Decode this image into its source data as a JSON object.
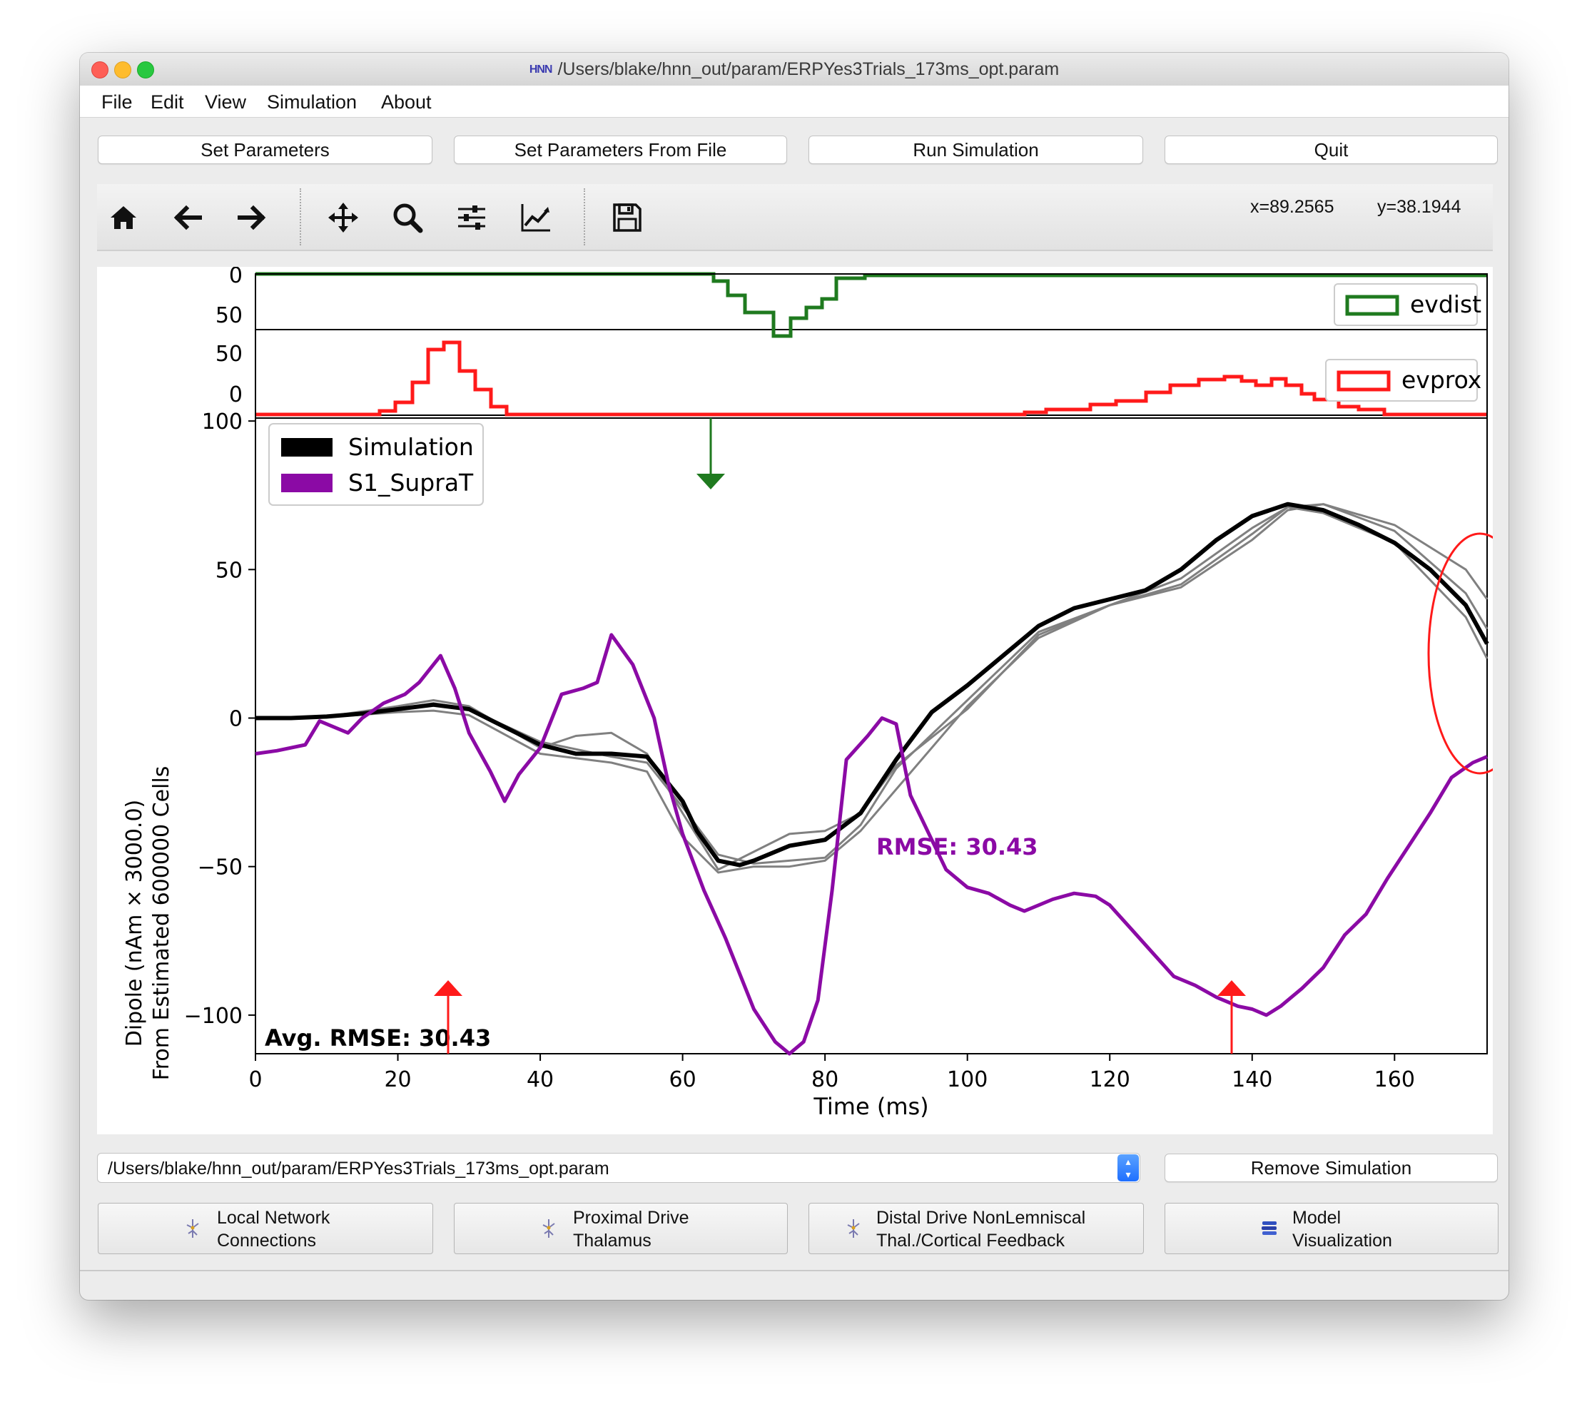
{
  "window": {
    "title": "/Users/blake/hnn_out/param/ERPYes3Trials_173ms_opt.param",
    "app_logo": "HNN"
  },
  "menu": [
    "File",
    "Edit",
    "View",
    "Simulation",
    "About"
  ],
  "buttons": {
    "set_parameters": "Set Parameters",
    "set_parameters_from_file": "Set Parameters From File",
    "run_simulation": "Run Simulation",
    "quit": "Quit",
    "remove_simulation": "Remove Simulation"
  },
  "toolbar": {
    "icons": [
      "home-icon",
      "back-arrow-icon",
      "forward-arrow-icon",
      "pan-icon",
      "zoom-icon",
      "configure-subplots-icon",
      "edit-axis-icon",
      "save-icon"
    ],
    "x_readout": "x=89.2565",
    "y_readout": "y=38.1944"
  },
  "chart_data": {
    "type": "line",
    "panels": {
      "evdist_hist": {
        "yticks": [
          "0",
          "50"
        ],
        "legend": "evdist",
        "color": "#1f7a1f"
      },
      "evprox_hist": {
        "yticks": [
          "50",
          "0"
        ],
        "legend": "evprox",
        "color": "#ff1a1a"
      },
      "dipole": {
        "ylabel_line1": "Dipole (nAm × 3000.0)",
        "ylabel_line2": "From Estimated 600000 Cells",
        "xlabel": "Time (ms)",
        "xticks": [
          "0",
          "20",
          "40",
          "60",
          "80",
          "100",
          "120",
          "140",
          "160"
        ],
        "yticks": [
          "100",
          "50",
          "0",
          "−50",
          "−100"
        ],
        "xlim": [
          0,
          173
        ],
        "ylim": [
          -113,
          101
        ],
        "legend": [
          "Simulation",
          "S1_SupraT"
        ],
        "rmse_label": "RMSE: 30.43",
        "avg_rmse_label": "Avg. RMSE: 30.43",
        "colors": {
          "simulation": "#000000",
          "trial": "#808080",
          "data": "#8b0aa5",
          "highlight": "#ff1a1a"
        },
        "series": [
          {
            "name": "Simulation",
            "x": [
              0,
              5,
              10,
              15,
              20,
              25,
              30,
              35,
              40,
              45,
              50,
              55,
              60,
              62,
              65,
              68,
              70,
              75,
              80,
              85,
              90,
              95,
              100,
              105,
              110,
              115,
              120,
              125,
              130,
              135,
              140,
              145,
              150,
              155,
              160,
              165,
              170,
              173
            ],
            "y": [
              0,
              0,
              0.5,
              1.5,
              3,
              4.5,
              3,
              -3,
              -9,
              -12,
              -12,
              -13,
              -28,
              -38,
              -48,
              -49.5,
              -48,
              -43,
              -41,
              -32,
              -14,
              2,
              11,
              21,
              31,
              37,
              40,
              43,
              50,
              60,
              68,
              72,
              70,
              65,
              59,
              50,
              38,
              25
            ]
          },
          {
            "name": "S1_SupraT",
            "x": [
              0,
              3,
              7,
              9,
              13,
              15,
              18,
              21,
              23,
              26,
              28,
              30,
              33,
              35,
              37,
              40,
              43,
              46,
              48,
              50,
              53,
              56,
              58,
              60,
              63,
              66,
              70,
              73,
              75,
              77,
              79,
              81,
              83,
              86,
              88,
              90,
              92,
              95,
              97,
              100,
              103,
              106,
              108,
              112,
              115,
              118,
              120,
              123,
              126,
              129,
              132,
              135,
              138,
              140,
              142,
              144,
              147,
              150,
              153,
              156,
              159,
              162,
              165,
              168,
              171,
              173
            ],
            "y": [
              -12,
              -11,
              -9,
              -1,
              -5,
              0,
              5,
              8,
              12,
              21,
              10,
              -5,
              -18,
              -28,
              -19,
              -10,
              8,
              10,
              12,
              28,
              18,
              0,
              -22,
              -39,
              -58,
              -74,
              -98,
              -109,
              -113,
              -109,
              -95,
              -58,
              -14,
              -6,
              0,
              -2,
              -26,
              -41,
              -51,
              -57,
              -59,
              -63,
              -65,
              -61,
              -59,
              -60,
              -63,
              -71,
              -79,
              -87,
              -90,
              -94,
              -97,
              -98,
              -100,
              -97,
              -91,
              -84,
              -73,
              -66,
              -54,
              -43,
              -32,
              -20,
              -15,
              -13
            ]
          },
          {
            "name": "trial-1",
            "x": [
              0,
              10,
              20,
              25,
              30,
              40,
              45,
              50,
              55,
              60,
              65,
              70,
              75,
              80,
              85,
              90,
              100,
              110,
              120,
              130,
              140,
              145,
              150,
              160,
              170,
              173
            ],
            "y": [
              0,
              0.5,
              4,
              6,
              4,
              -10,
              -6,
              -5,
              -12,
              -32,
              -51,
              -45,
              -39,
              -38,
              -32,
              -16,
              3,
              28,
              38,
              47,
              64,
              71,
              72,
              63,
              42,
              30
            ]
          },
          {
            "name": "trial-2",
            "x": [
              0,
              10,
              20,
              25,
              30,
              40,
              50,
              55,
              60,
              65,
              70,
              75,
              80,
              85,
              90,
              100,
              110,
              120,
              130,
              140,
              145,
              150,
              160,
              170,
              173
            ],
            "y": [
              0,
              0.3,
              2,
              2.5,
              1,
              -12,
              -15,
              -18,
              -40,
              -52,
              -50,
              -50,
              -48,
              -38,
              -24,
              4,
              27,
              38,
              44,
              60,
              70,
              72,
              65,
              50,
              40
            ]
          },
          {
            "name": "trial-3",
            "x": [
              0,
              10,
              20,
              25,
              30,
              40,
              50,
              55,
              60,
              65,
              70,
              75,
              80,
              85,
              90,
              100,
              110,
              120,
              130,
              140,
              145,
              150,
              160,
              170,
              173
            ],
            "y": [
              0,
              0.2,
              3,
              5,
              3,
              -8,
              -13,
              -15,
              -30,
              -46,
              -49,
              -48,
              -47,
              -36,
              -17,
              6,
              29,
              38,
              45,
              62,
              71,
              69,
              59,
              34,
              20
            ]
          }
        ]
      }
    }
  },
  "dropdown": {
    "value": "/Users/blake/hnn_out/param/ERPYes3Trials_173ms_opt.param"
  },
  "windows": [
    {
      "line1": "Local Network",
      "line2": "Connections"
    },
    {
      "line1": "Proximal Drive",
      "line2": "Thalamus"
    },
    {
      "line1": "Distal Drive NonLemniscal",
      "line2": "Thal./Cortical Feedback"
    },
    {
      "line1": "Model",
      "line2": "Visualization"
    }
  ]
}
